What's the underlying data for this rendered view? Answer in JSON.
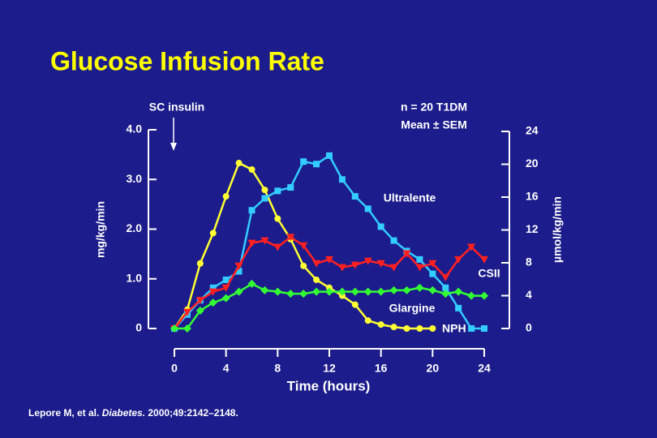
{
  "chart_data": {
    "type": "line",
    "title": "Glucose Infusion Rate",
    "ylabel": "mg/kg/min",
    "y2label": "µmol/kg/min",
    "xlabel": "Time (hours)",
    "annotations": [
      "SC insulin",
      "n = 20 T1DM",
      "Mean ± SEM"
    ],
    "source": [
      "Lepore M, et al. ",
      "Diabetes.",
      " 2000;49:2142–2148."
    ],
    "xlim": [
      0,
      24
    ],
    "xticks": [
      0,
      4,
      8,
      12,
      16,
      20,
      24
    ],
    "ylim": [
      0,
      4
    ],
    "yticks": [
      0,
      {
        "value": 1,
        "label": "1.0"
      },
      {
        "value": 2,
        "label": "2.0"
      },
      {
        "value": 3,
        "label": "3.0"
      },
      {
        "value": 4,
        "label": "4.0"
      }
    ],
    "y2lim": [
      0,
      24
    ],
    "y2ticks": [
      0,
      4,
      8,
      12,
      16,
      20,
      24
    ],
    "series": [
      {
        "name": "NPH",
        "color": "#ffff33",
        "x": [
          0,
          1,
          2,
          3,
          4,
          5,
          6,
          7,
          8,
          9,
          10,
          11,
          12,
          13,
          14,
          15,
          16,
          17,
          18,
          19,
          20
        ],
        "values": [
          0,
          0.38,
          1.31,
          1.92,
          2.66,
          3.33,
          3.2,
          2.79,
          2.21,
          1.8,
          1.26,
          0.98,
          0.82,
          0.66,
          0.48,
          0.16,
          0.08,
          0.03,
          0,
          0,
          0
        ]
      },
      {
        "name": "Ultralente",
        "color": "#33ccff",
        "x": [
          0,
          1,
          2,
          3,
          4,
          5,
          6,
          7,
          8,
          9,
          10,
          11,
          12,
          13,
          14,
          15,
          16,
          17,
          18,
          19,
          20,
          21,
          22,
          23,
          24
        ],
        "values": [
          0,
          0.28,
          0.57,
          0.82,
          0.98,
          1.15,
          2.38,
          2.62,
          2.77,
          2.84,
          3.36,
          3.31,
          3.48,
          3.0,
          2.66,
          2.41,
          2.05,
          1.77,
          1.56,
          1.39,
          1.1,
          0.82,
          0.41,
          0,
          0
        ]
      },
      {
        "name": "CSII",
        "color": "#ff2020",
        "x": [
          0,
          1,
          2,
          3,
          4,
          5,
          6,
          7,
          8,
          9,
          10,
          11,
          12,
          13,
          14,
          15,
          16,
          17,
          18,
          19,
          20,
          21,
          22,
          23,
          24
        ],
        "values": [
          0,
          0.33,
          0.57,
          0.74,
          0.82,
          1.26,
          1.72,
          1.77,
          1.64,
          1.84,
          1.67,
          1.31,
          1.39,
          1.23,
          1.28,
          1.36,
          1.31,
          1.23,
          1.51,
          1.23,
          1.31,
          1.03,
          1.39,
          1.64,
          1.39
        ]
      },
      {
        "name": "Glargine",
        "color": "#33ff33",
        "x": [
          0,
          1,
          2,
          3,
          4,
          5,
          6,
          7,
          8,
          9,
          10,
          11,
          12,
          13,
          14,
          15,
          16,
          17,
          18,
          19,
          20,
          21,
          22,
          23,
          24
        ],
        "values": [
          0,
          0,
          0.36,
          0.52,
          0.61,
          0.74,
          0.9,
          0.77,
          0.74,
          0.7,
          0.7,
          0.74,
          0.74,
          0.74,
          0.74,
          0.74,
          0.74,
          0.77,
          0.77,
          0.82,
          0.77,
          0.7,
          0.74,
          0.66,
          0.66
        ]
      }
    ]
  }
}
